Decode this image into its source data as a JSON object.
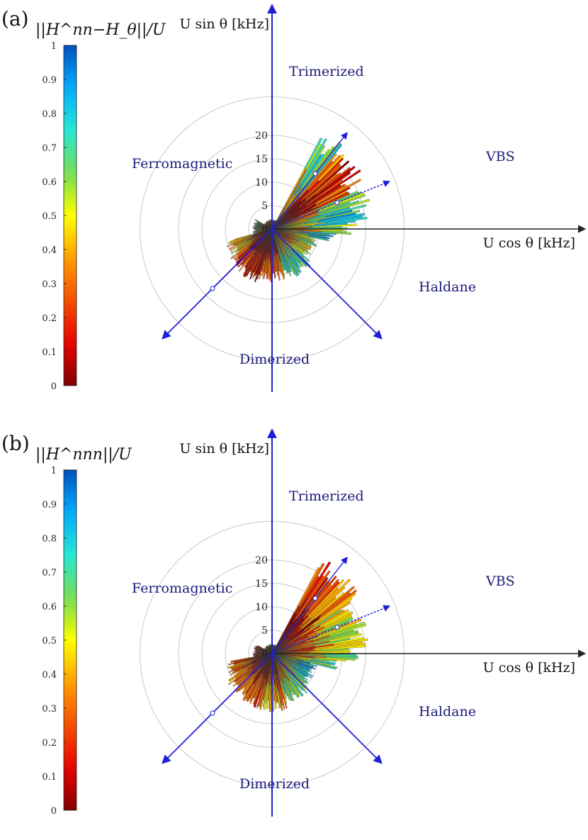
{
  "panels": [
    {
      "label": "(a)",
      "colorbar_label": "||H^nn−H_θ||/U",
      "colorbar_ticks": [
        "0",
        "0.1",
        "0.2",
        "0.3",
        "0.4",
        "0.5",
        "0.6",
        "0.7",
        "0.8",
        "0.9",
        "1"
      ],
      "ylabel": "U sin θ [kHz]",
      "xlabel": "U cos θ [kHz]",
      "radial_ticks": [
        "0",
        "5",
        "10",
        "15",
        "20"
      ],
      "phase_labels": {
        "trimerized": "Trimerized",
        "vbs": "VBS",
        "ferromagnetic": "Ferromagnetic",
        "haldane": "Haldane",
        "dimerized": "Dimerized"
      }
    },
    {
      "label": "(b)",
      "colorbar_label": "||H^nnn||/U",
      "colorbar_ticks": [
        "0",
        "0.1",
        "0.2",
        "0.3",
        "0.4",
        "0.5",
        "0.6",
        "0.7",
        "0.8",
        "0.9",
        "1"
      ],
      "ylabel": "U sin θ [kHz]",
      "xlabel": "U cos θ [kHz]",
      "radial_ticks": [
        "0",
        "5",
        "10",
        "15",
        "20"
      ],
      "phase_labels": {
        "trimerized": "Trimerized",
        "vbs": "VBS",
        "ferromagnetic": "Ferromagnetic",
        "haldane": "Haldane",
        "dimerized": "Dimerized"
      }
    }
  ],
  "chart_data": [
    {
      "type": "heatmap",
      "coordinate_system": "polar",
      "xlabel": "U cos θ [kHz]",
      "ylabel": "U sin θ [kHz]",
      "radial_range": [
        0,
        22
      ],
      "radial_ticks": [
        0,
        5,
        10,
        15,
        20
      ],
      "colorbar": {
        "label": "||H^nn−H_θ||/U",
        "range": [
          0,
          1
        ],
        "colormap": "jet"
      },
      "phase_regions": [
        "Trimerized",
        "VBS",
        "Ferromagnetic",
        "Haldane",
        "Dimerized"
      ],
      "sectors": [
        {
          "angle_deg_from": 50,
          "angle_deg_to": 62,
          "r_max": 23,
          "value": 0.7
        },
        {
          "angle_deg_from": 42,
          "angle_deg_to": 50,
          "r_max": 22,
          "value": 0.3
        },
        {
          "angle_deg_from": 33,
          "angle_deg_to": 42,
          "r_max": 22,
          "value": 0.15
        },
        {
          "angle_deg_from": 24,
          "angle_deg_to": 33,
          "r_max": 21,
          "value": 0.25
        },
        {
          "angle_deg_from": 16,
          "angle_deg_to": 24,
          "r_max": 21,
          "value": 0.55
        },
        {
          "angle_deg_from": 6,
          "angle_deg_to": 16,
          "r_max": 20,
          "value": 0.75
        },
        {
          "angle_deg_from": -4,
          "angle_deg_to": 6,
          "r_max": 18,
          "value": 0.65
        },
        {
          "angle_deg_from": -12,
          "angle_deg_to": -4,
          "r_max": 14,
          "value": 0.8
        },
        {
          "angle_deg_from": -40,
          "angle_deg_to": -12,
          "r_max": 10,
          "value": 0.55
        },
        {
          "angle_deg_from": -75,
          "angle_deg_to": -40,
          "r_max": 11,
          "value": 0.75
        },
        {
          "angle_deg_from": -105,
          "angle_deg_to": -75,
          "r_max": 11,
          "value": 0.3
        },
        {
          "angle_deg_from": -125,
          "angle_deg_to": -105,
          "r_max": 12,
          "value": 0.12
        },
        {
          "angle_deg_from": -145,
          "angle_deg_to": -125,
          "r_max": 11,
          "value": 0.2
        },
        {
          "angle_deg_from": -165,
          "angle_deg_to": -145,
          "r_max": 10,
          "value": 0.45
        },
        {
          "angle_deg_from": 150,
          "angle_deg_to": 195,
          "r_max": 4,
          "value": 0.6
        },
        {
          "angle_deg_from": 62,
          "angle_deg_to": 150,
          "r_max": 2,
          "value": 0.5
        }
      ]
    },
    {
      "type": "heatmap",
      "coordinate_system": "polar",
      "xlabel": "U cos θ [kHz]",
      "ylabel": "U sin θ [kHz]",
      "radial_range": [
        0,
        22
      ],
      "radial_ticks": [
        0,
        5,
        10,
        15,
        20
      ],
      "colorbar": {
        "label": "||H^nnn||/U",
        "range": [
          0,
          1
        ],
        "colormap": "jet"
      },
      "phase_regions": [
        "Trimerized",
        "VBS",
        "Ferromagnetic",
        "Haldane",
        "Dimerized"
      ],
      "sectors": [
        {
          "angle_deg_from": 52,
          "angle_deg_to": 62,
          "r_max": 23,
          "value": 0.2
        },
        {
          "angle_deg_from": 43,
          "angle_deg_to": 52,
          "r_max": 23,
          "value": 0.3
        },
        {
          "angle_deg_from": 34,
          "angle_deg_to": 43,
          "r_max": 22,
          "value": 0.35
        },
        {
          "angle_deg_from": 24,
          "angle_deg_to": 34,
          "r_max": 21,
          "value": 0.5
        },
        {
          "angle_deg_from": 14,
          "angle_deg_to": 24,
          "r_max": 21,
          "value": 0.55
        },
        {
          "angle_deg_from": 4,
          "angle_deg_to": 14,
          "r_max": 20,
          "value": 0.5
        },
        {
          "angle_deg_from": -6,
          "angle_deg_to": 4,
          "r_max": 18,
          "value": 0.6
        },
        {
          "angle_deg_from": -14,
          "angle_deg_to": -6,
          "r_max": 14,
          "value": 0.7
        },
        {
          "angle_deg_from": -42,
          "angle_deg_to": -14,
          "r_max": 10,
          "value": 0.8
        },
        {
          "angle_deg_from": -72,
          "angle_deg_to": -42,
          "r_max": 11,
          "value": 0.65
        },
        {
          "angle_deg_from": -100,
          "angle_deg_to": -72,
          "r_max": 12,
          "value": 0.4
        },
        {
          "angle_deg_from": -125,
          "angle_deg_to": -100,
          "r_max": 12,
          "value": 0.28
        },
        {
          "angle_deg_from": -150,
          "angle_deg_to": -125,
          "r_max": 11,
          "value": 0.3
        },
        {
          "angle_deg_from": -170,
          "angle_deg_to": -150,
          "r_max": 10,
          "value": 0.25
        },
        {
          "angle_deg_from": 150,
          "angle_deg_to": 190,
          "r_max": 4,
          "value": 0.2
        },
        {
          "angle_deg_from": 62,
          "angle_deg_to": 150,
          "r_max": 2,
          "value": 0.4
        }
      ]
    }
  ]
}
